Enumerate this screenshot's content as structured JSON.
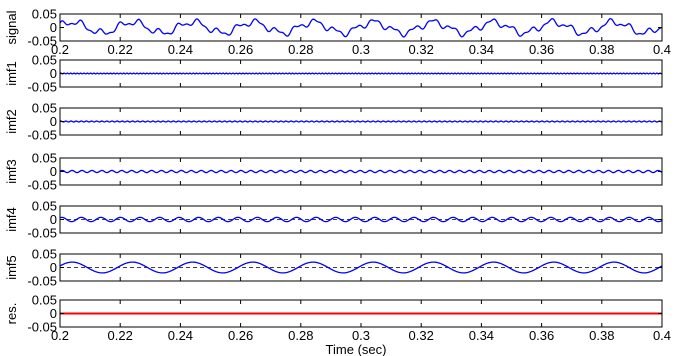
{
  "chart_data": {
    "type": "line",
    "xlabel": "Time (sec)",
    "xlim": [
      0.2,
      0.4
    ],
    "x_ticks": [
      "0.2",
      "0.22",
      "0.24",
      "0.26",
      "0.28",
      "0.3",
      "0.32",
      "0.34",
      "0.36",
      "0.38",
      "0.4"
    ],
    "grid": false,
    "panels": [
      {
        "ylabel": "signal",
        "ylim": [
          -0.05,
          0.05
        ],
        "y_ticks": [
          "0.05",
          "0",
          "-0.05"
        ],
        "x_tick_labels": true,
        "color": "#0000ff",
        "dashed_zero": false,
        "components": [
          {
            "amplitude": 0.02,
            "period": 0.02,
            "phase": 0.3
          },
          {
            "amplitude": 0.01,
            "period": 0.0065,
            "phase": 1.1
          },
          {
            "amplitude": 0.005,
            "period": 0.0032,
            "phase": 0.4
          }
        ]
      },
      {
        "ylabel": "imf1",
        "ylim": [
          -0.05,
          0.05
        ],
        "y_ticks": [
          "0.05",
          "0",
          "-0.05"
        ],
        "x_tick_labels": false,
        "color": "#0000ff",
        "dashed_zero": false,
        "components": [
          {
            "amplitude": 0.0015,
            "period": 0.0011,
            "phase": 0.0
          }
        ]
      },
      {
        "ylabel": "imf2",
        "ylim": [
          -0.05,
          0.05
        ],
        "y_ticks": [
          "0.05",
          "0",
          "-0.05"
        ],
        "x_tick_labels": false,
        "color": "#0000ff",
        "dashed_zero": false,
        "components": [
          {
            "amplitude": 0.0018,
            "period": 0.0017,
            "phase": 0.5
          }
        ]
      },
      {
        "ylabel": "imf3",
        "ylim": [
          -0.05,
          0.05
        ],
        "y_ticks": [
          "0.05",
          "0",
          "-0.05"
        ],
        "x_tick_labels": false,
        "color": "#0000ff",
        "dashed_zero": false,
        "components": [
          {
            "amplitude": 0.004,
            "period": 0.0033,
            "phase": 0.2
          }
        ]
      },
      {
        "ylabel": "imf4",
        "ylim": [
          -0.05,
          0.05
        ],
        "y_ticks": [
          "0.05",
          "0",
          "-0.05"
        ],
        "x_tick_labels": false,
        "color": "#0000ff",
        "dashed_zero": true,
        "components": [
          {
            "amplitude": 0.008,
            "period": 0.0065,
            "phase": 1.0
          }
        ]
      },
      {
        "ylabel": "imf5",
        "ylim": [
          -0.05,
          0.05
        ],
        "y_ticks": [
          "0.05",
          "0",
          "-0.05"
        ],
        "x_tick_labels": false,
        "color": "#0000ff",
        "dashed_zero": true,
        "components": [
          {
            "amplitude": 0.02,
            "period": 0.02,
            "phase": 0.3
          }
        ]
      },
      {
        "ylabel": "res.",
        "ylim": [
          -0.05,
          0.05
        ],
        "y_ticks": [
          "0.05",
          "0",
          "-0.05"
        ],
        "x_tick_labels": true,
        "color": "#ff0000",
        "dashed_zero": false,
        "components": []
      }
    ]
  }
}
